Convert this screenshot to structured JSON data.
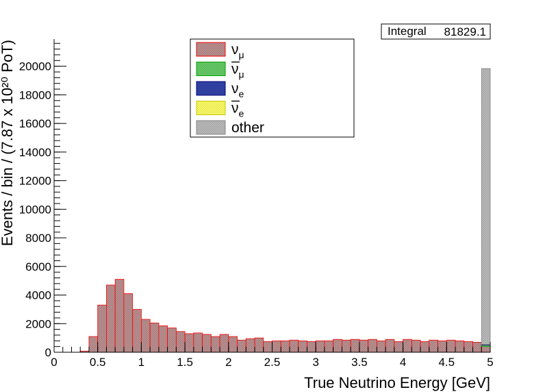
{
  "chart_data": {
    "type": "bar",
    "xlabel": "True Neutrino Energy [GeV]",
    "ylabel": "Events / bin / (7.87 x 10²⁰ PoT)",
    "xlim": [
      0,
      5
    ],
    "ylim": [
      0,
      21900
    ],
    "bin_width": 0.1,
    "x_ticks": [
      "0",
      "0.5",
      "1",
      "1.5",
      "2",
      "2.5",
      "3",
      "3.5",
      "4",
      "4.5",
      "5"
    ],
    "y_ticks": [
      "0",
      "2000",
      "4000",
      "6000",
      "8000",
      "10000",
      "12000",
      "14000",
      "16000",
      "18000",
      "20000"
    ],
    "x_tick_values": [
      0,
      0.5,
      1,
      1.5,
      2,
      2.5,
      3,
      3.5,
      4,
      4.5,
      5
    ],
    "y_tick_values": [
      0,
      2000,
      4000,
      6000,
      8000,
      10000,
      12000,
      14000,
      16000,
      18000,
      20000
    ],
    "stats": {
      "label": "Integral",
      "value": "81829.1"
    },
    "legend_position": "top-center",
    "series": [
      {
        "name": "νμ",
        "legend_base": "ν",
        "legend_sub": "μ",
        "bar": false,
        "fill": "#bc8f8f",
        "edge": "#ff0000",
        "values": [
          0,
          0,
          0,
          80,
          1100,
          3300,
          4700,
          5100,
          4100,
          3000,
          2300,
          2050,
          1850,
          1700,
          1450,
          1300,
          1350,
          1250,
          1100,
          1250,
          1100,
          850,
          950,
          1000,
          750,
          800,
          800,
          850,
          800,
          750,
          800,
          800,
          900,
          850,
          900,
          850,
          900,
          800,
          900,
          750,
          900,
          850,
          750,
          850,
          800,
          850,
          800,
          750,
          700,
          400
        ]
      },
      {
        "name": "ν̄μ",
        "legend_base": "ν",
        "legend_sub": "μ",
        "bar": true,
        "fill": "#66cc66",
        "edge": "#00aa00",
        "values": [
          0,
          0,
          0,
          0,
          0,
          0,
          0,
          0,
          0,
          0,
          0,
          0,
          0,
          0,
          0,
          0,
          0,
          0,
          0,
          0,
          0,
          0,
          0,
          0,
          0,
          0,
          0,
          0,
          0,
          0,
          0,
          0,
          0,
          0,
          0,
          0,
          0,
          0,
          0,
          0,
          0,
          0,
          0,
          0,
          0,
          0,
          0,
          0,
          0,
          100
        ]
      },
      {
        "name": "νe",
        "legend_base": "ν",
        "legend_sub": "e",
        "bar": false,
        "fill": "#3344aa",
        "edge": "#000080",
        "values": [
          0,
          0,
          0,
          0,
          0,
          0,
          0,
          0,
          0,
          0,
          0,
          0,
          0,
          0,
          0,
          0,
          0,
          0,
          0,
          0,
          0,
          0,
          0,
          0,
          0,
          0,
          0,
          0,
          0,
          0,
          0,
          0,
          0,
          0,
          0,
          0,
          0,
          0,
          0,
          0,
          0,
          0,
          0,
          0,
          0,
          0,
          0,
          0,
          0,
          40
        ]
      },
      {
        "name": "ν̄e",
        "legend_base": "ν",
        "legend_sub": "e",
        "bar": true,
        "fill": "#ffff66",
        "edge": "#cccc00",
        "values": [
          0,
          0,
          0,
          0,
          0,
          0,
          0,
          0,
          0,
          0,
          0,
          0,
          0,
          0,
          0,
          0,
          0,
          0,
          0,
          0,
          0,
          0,
          0,
          0,
          0,
          0,
          0,
          0,
          0,
          0,
          0,
          0,
          0,
          0,
          0,
          0,
          0,
          0,
          0,
          0,
          0,
          0,
          0,
          0,
          0,
          0,
          0,
          0,
          0,
          0
        ]
      },
      {
        "name": "other",
        "legend_base": "other",
        "legend_sub": "",
        "bar": false,
        "fill": "#bbbbbb",
        "edge": "#888888",
        "values": [
          0,
          0,
          0,
          0,
          0,
          0,
          0,
          0,
          0,
          0,
          0,
          0,
          0,
          0,
          0,
          0,
          0,
          0,
          0,
          0,
          0,
          0,
          0,
          0,
          0,
          0,
          0,
          0,
          0,
          0,
          0,
          0,
          0,
          0,
          0,
          0,
          0,
          0,
          0,
          0,
          0,
          0,
          0,
          0,
          0,
          0,
          0,
          0,
          0,
          19300
        ]
      }
    ]
  }
}
